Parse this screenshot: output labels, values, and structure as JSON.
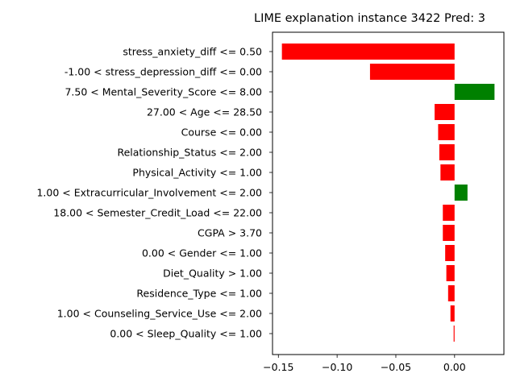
{
  "chart_data": {
    "type": "bar",
    "orientation": "horizontal",
    "title": "LIME explanation instance 3422 Pred: 3",
    "xlabel": "",
    "ylabel": "",
    "xlim": [
      -0.155,
      0.042
    ],
    "xticks": [
      -0.15,
      -0.1,
      -0.05,
      0.0
    ],
    "xtick_labels": [
      "−0.15",
      "−0.10",
      "−0.05",
      "0.00"
    ],
    "grid": false,
    "positive_color": "#008000",
    "negative_color": "#ff0000",
    "categories": [
      "stress_anxiety_diff <= 0.50",
      "-1.00 < stress_depression_diff <= 0.00",
      "7.50 < Mental_Severity_Score <= 8.00",
      "27.00 < Age <= 28.50",
      "Course <= 0.00",
      "Relationship_Status <= 2.00",
      "Physical_Activity <= 1.00",
      "1.00 < Extracurricular_Involvement <= 2.00",
      "18.00 < Semester_Credit_Load <= 22.00",
      "CGPA > 3.70",
      "0.00 < Gender <= 1.00",
      "Diet_Quality > 1.00",
      "Residence_Type <= 1.00",
      "1.00 < Counseling_Service_Use <= 2.00",
      "0.00 < Sleep_Quality <= 1.00"
    ],
    "values": [
      -0.147,
      -0.072,
      0.034,
      -0.017,
      -0.014,
      -0.013,
      -0.012,
      0.011,
      -0.01,
      -0.01,
      -0.008,
      -0.007,
      -0.0055,
      -0.0035,
      -0.0008
    ]
  }
}
